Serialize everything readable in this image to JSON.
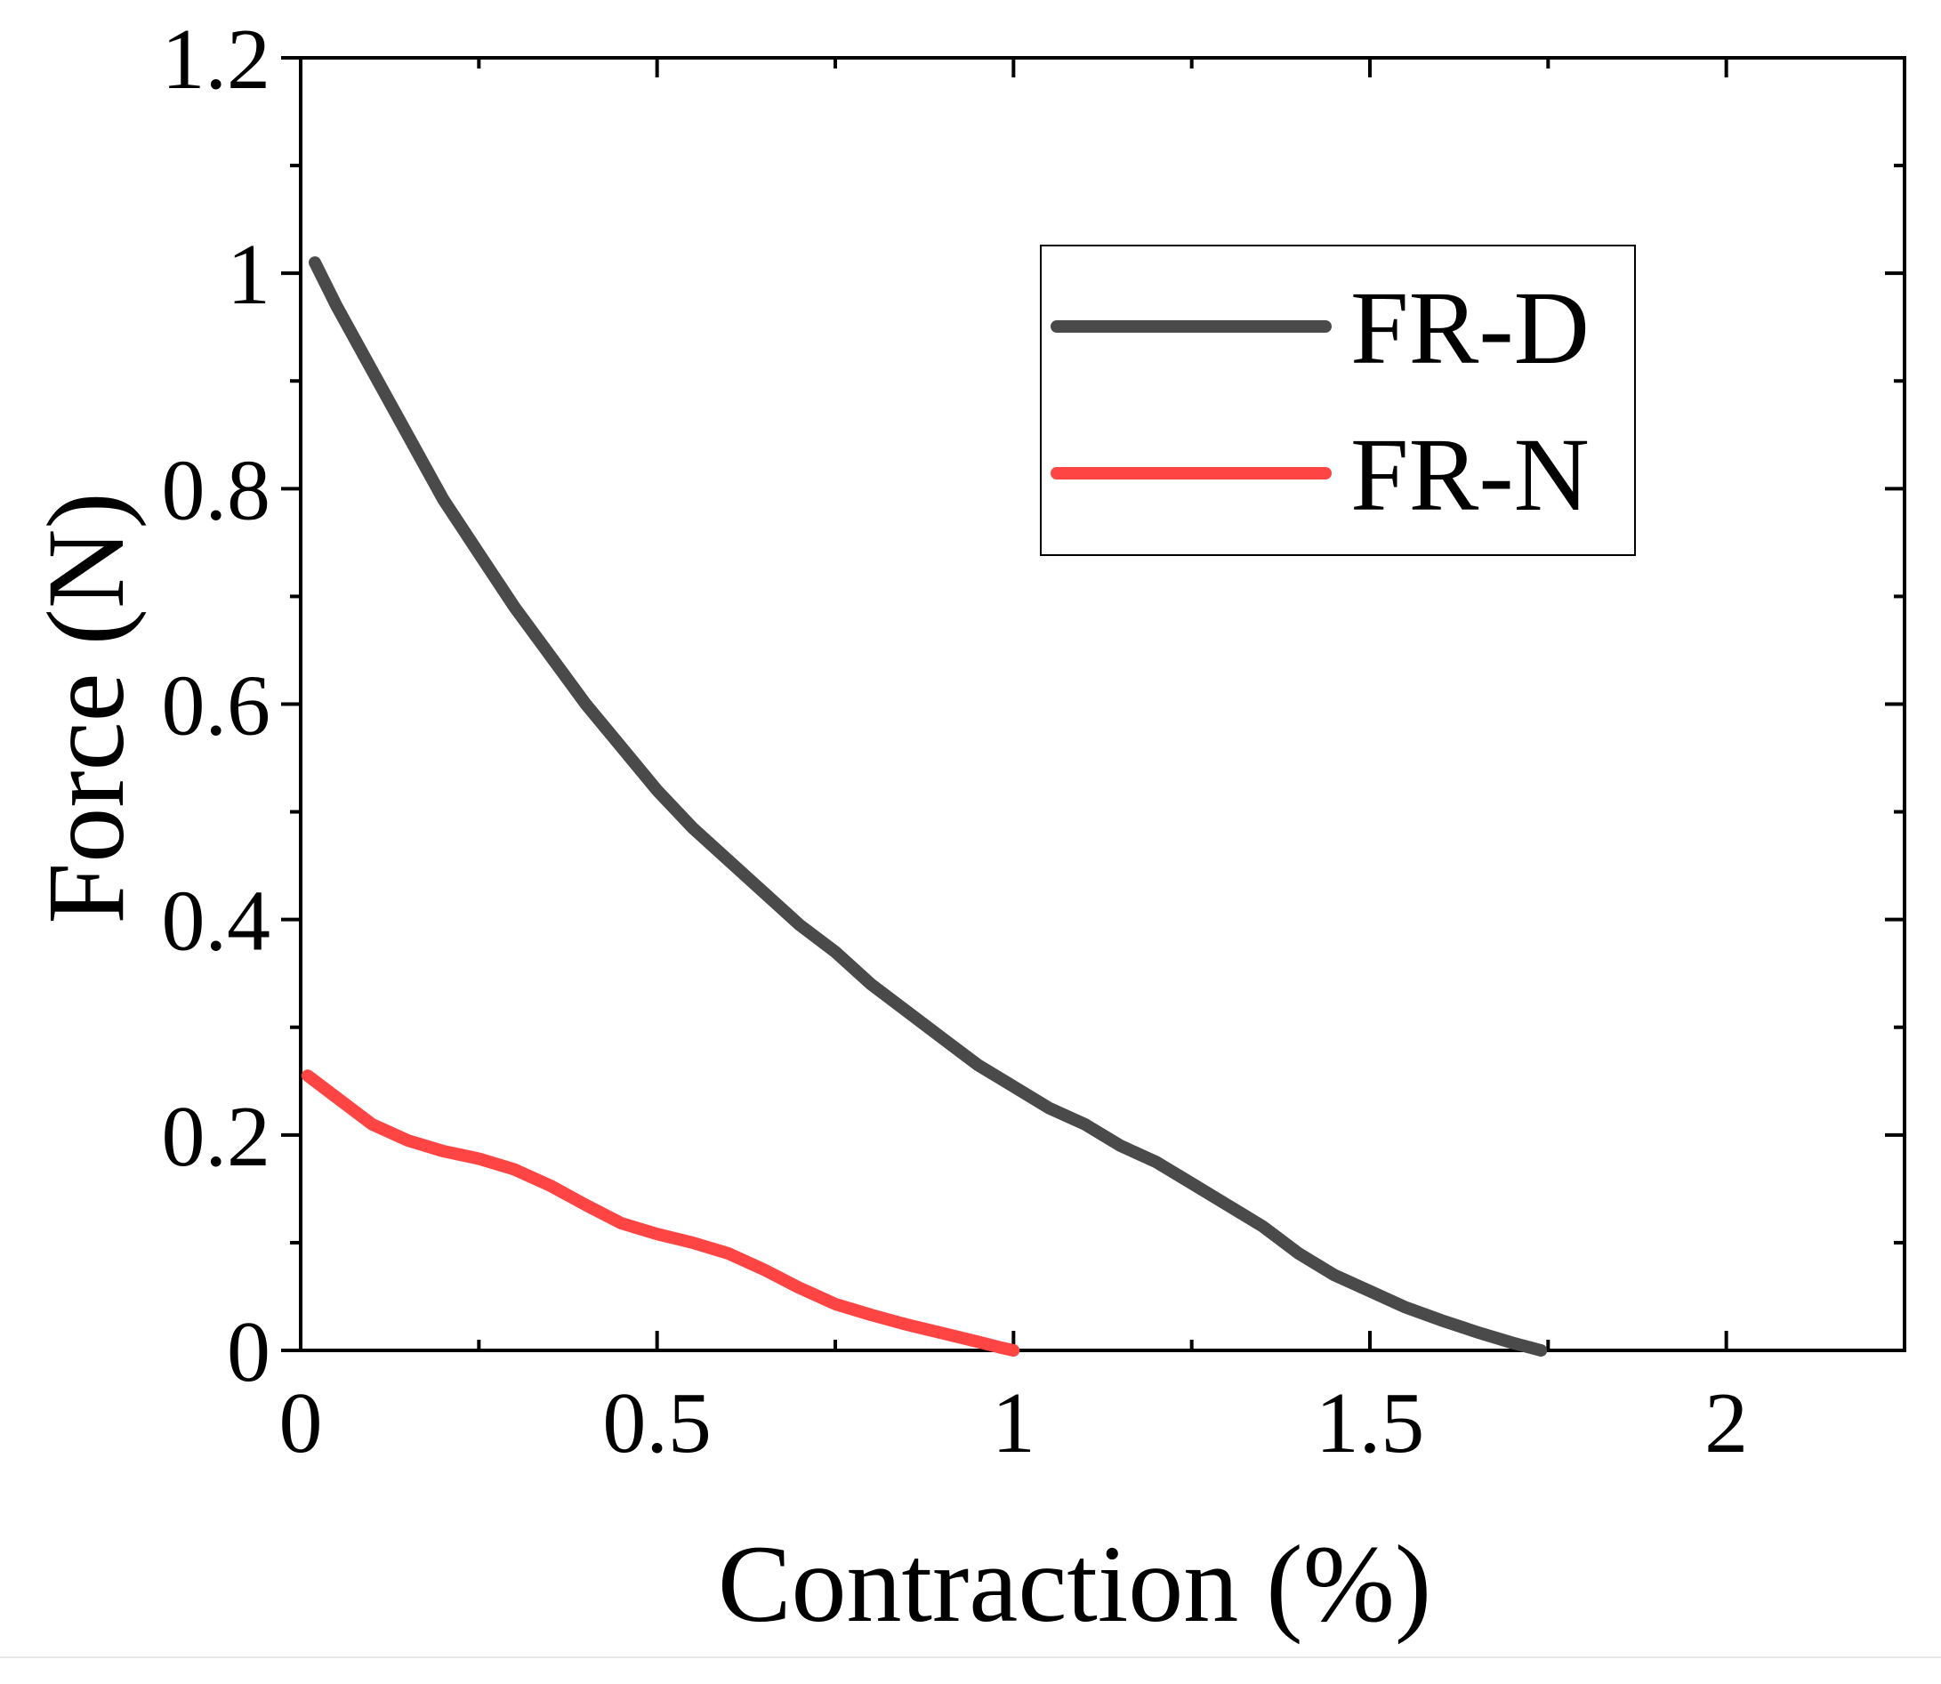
{
  "chart_data": {
    "type": "line",
    "title": "",
    "xlabel": "Contraction (%)",
    "ylabel": "Force (N)",
    "xlim": [
      0,
      2.25
    ],
    "ylim": [
      0,
      1.2
    ],
    "xticks": [
      0,
      0.5,
      1,
      1.5,
      2
    ],
    "xtick_labels": [
      "0",
      "0.5",
      "1",
      "1.5",
      "2"
    ],
    "yticks": [
      0,
      0.2,
      0.4,
      0.6,
      0.8,
      1,
      1.2
    ],
    "ytick_labels": [
      "0",
      "0.2",
      "0.4",
      "0.6",
      "0.8",
      "1",
      "1.2"
    ],
    "grid": false,
    "legend_position": "top-right",
    "series": [
      {
        "name": "FR-D",
        "color": "#4a4a4a",
        "x": [
          0.02,
          0.05,
          0.1,
          0.15,
          0.2,
          0.25,
          0.3,
          0.35,
          0.4,
          0.45,
          0.5,
          0.55,
          0.6,
          0.65,
          0.7,
          0.75,
          0.8,
          0.85,
          0.9,
          0.95,
          1.0,
          1.05,
          1.1,
          1.15,
          1.2,
          1.25,
          1.3,
          1.35,
          1.4,
          1.45,
          1.5,
          1.55,
          1.6,
          1.65,
          1.7,
          1.74
        ],
        "y": [
          1.01,
          0.97,
          0.91,
          0.85,
          0.79,
          0.74,
          0.69,
          0.645,
          0.6,
          0.56,
          0.52,
          0.485,
          0.455,
          0.425,
          0.395,
          0.37,
          0.34,
          0.315,
          0.29,
          0.265,
          0.245,
          0.225,
          0.21,
          0.19,
          0.175,
          0.155,
          0.135,
          0.115,
          0.09,
          0.07,
          0.055,
          0.04,
          0.028,
          0.017,
          0.007,
          0.0
        ]
      },
      {
        "name": "FR-N",
        "color": "#ff4444",
        "x": [
          0.01,
          0.05,
          0.1,
          0.15,
          0.2,
          0.25,
          0.3,
          0.35,
          0.4,
          0.45,
          0.5,
          0.55,
          0.6,
          0.65,
          0.7,
          0.75,
          0.8,
          0.85,
          0.9,
          0.95,
          0.98,
          1.0
        ],
        "y": [
          0.255,
          0.235,
          0.21,
          0.195,
          0.185,
          0.178,
          0.168,
          0.153,
          0.135,
          0.118,
          0.108,
          0.1,
          0.09,
          0.075,
          0.058,
          0.043,
          0.033,
          0.024,
          0.016,
          0.008,
          0.003,
          0.0
        ]
      }
    ]
  }
}
